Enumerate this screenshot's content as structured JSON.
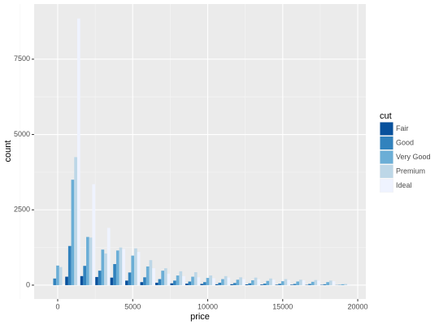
{
  "chart_data": {
    "type": "histogram",
    "x_label": "price",
    "y_label": "count",
    "bins": [
      -500,
      500,
      1500,
      2500,
      3500,
      4500,
      5500,
      6500,
      7500,
      8500,
      9500,
      10500,
      11500,
      12500,
      13500,
      14500,
      15500,
      16500,
      17500,
      18500,
      19500
    ],
    "series": [
      {
        "name": "Fair",
        "color": "#08519c",
        "values": [
          0,
          280,
          300,
          270,
          250,
          150,
          100,
          80,
          60,
          50,
          40,
          30,
          30,
          25,
          20,
          15,
          15,
          10,
          10,
          5
        ]
      },
      {
        "name": "Good",
        "color": "#3182bd",
        "values": [
          220,
          1300,
          640,
          480,
          700,
          420,
          260,
          200,
          150,
          120,
          100,
          80,
          70,
          60,
          50,
          45,
          40,
          40,
          30,
          10
        ]
      },
      {
        "name": "Very Good",
        "color": "#6baed6",
        "values": [
          650,
          3500,
          1600,
          1180,
          1150,
          980,
          620,
          480,
          320,
          280,
          240,
          200,
          180,
          160,
          140,
          130,
          120,
          110,
          100,
          30
        ]
      },
      {
        "name": "Premium",
        "color": "#bdd7e7",
        "values": [
          600,
          4250,
          1580,
          1050,
          1250,
          1220,
          830,
          560,
          460,
          430,
          320,
          300,
          260,
          250,
          220,
          200,
          180,
          170,
          150,
          40
        ]
      },
      {
        "name": "Ideal",
        "color": "#eff3ff",
        "values": [
          0,
          8850,
          3350,
          1900,
          1200,
          1100,
          560,
          380,
          300,
          260,
          230,
          250,
          200,
          190,
          180,
          170,
          160,
          150,
          130,
          30
        ]
      }
    ],
    "legend_title": "cut",
    "legend_position": "right",
    "xlim": [
      -1570,
      20540
    ],
    "xticks": [
      0,
      5000,
      10000,
      15000,
      20000
    ],
    "ylim": [
      -460,
      9330
    ],
    "yticks": [
      0,
      2500,
      5000,
      7500
    ],
    "grid": true
  }
}
